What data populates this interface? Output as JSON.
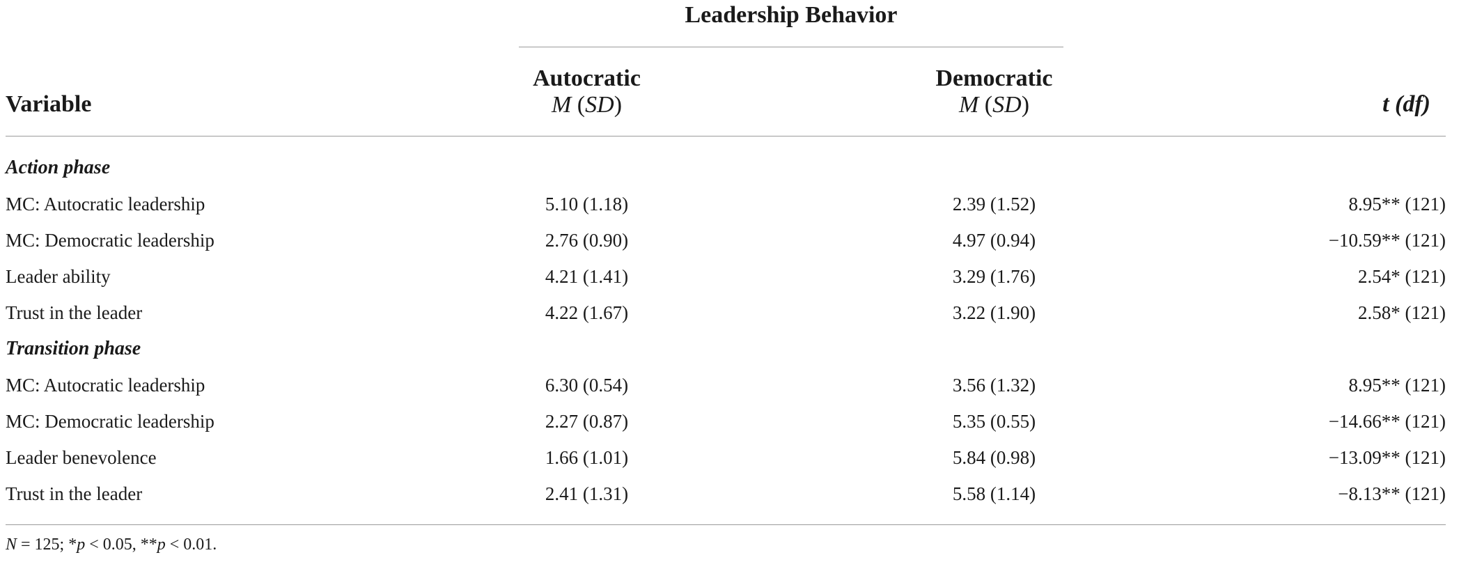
{
  "table": {
    "group_header": "Leadership Behavior",
    "columns": {
      "variable": "Variable",
      "autocratic": "Autocratic",
      "democratic": "Democratic",
      "ms_m": "M",
      "ms_sd": "SD",
      "t_df": "t (df)"
    },
    "sections": [
      {
        "label": "Action phase",
        "rows": [
          {
            "variable": "MC: Autocratic leadership",
            "autocratic": "5.10 (1.18)",
            "democratic": "2.39 (1.52)",
            "t": "8.95** (121)"
          },
          {
            "variable": "MC: Democratic leadership",
            "autocratic": "2.76 (0.90)",
            "democratic": "4.97 (0.94)",
            "t": "−10.59** (121)"
          },
          {
            "variable": "Leader ability",
            "autocratic": "4.21 (1.41)",
            "democratic": "3.29 (1.76)",
            "t": "2.54* (121)"
          },
          {
            "variable": "Trust in the leader",
            "autocratic": "4.22 (1.67)",
            "democratic": "3.22 (1.90)",
            "t": "2.58* (121)"
          }
        ]
      },
      {
        "label": "Transition phase",
        "rows": [
          {
            "variable": "MC: Autocratic leadership",
            "autocratic": "6.30 (0.54)",
            "democratic": "3.56 (1.32)",
            "t": "8.95** (121)"
          },
          {
            "variable": "MC: Democratic leadership",
            "autocratic": "2.27 (0.87)",
            "democratic": "5.35 (0.55)",
            "t": "−14.66** (121)"
          },
          {
            "variable": "Leader benevolence",
            "autocratic": "1.66 (1.01)",
            "democratic": "5.84 (0.98)",
            "t": "−13.09** (121)"
          },
          {
            "variable": "Trust in the leader",
            "autocratic": "2.41 (1.31)",
            "democratic": "5.58 (1.14)",
            "t": "−8.13** (121)"
          }
        ]
      }
    ],
    "note": {
      "n_label": "N",
      "n_text": " = 125; *",
      "p1_label": "p",
      "p1_text": " < 0.05, **",
      "p2_label": "p",
      "p2_text": " < 0.01."
    }
  }
}
